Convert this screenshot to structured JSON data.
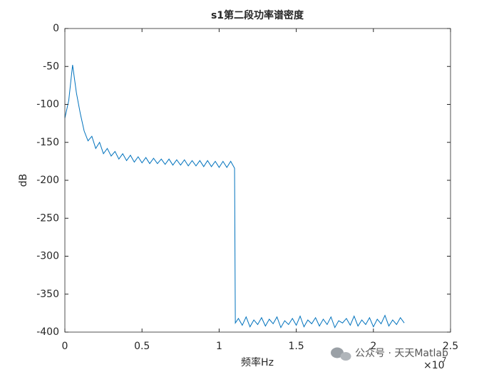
{
  "chart_data": {
    "type": "line",
    "title": "s1第二段功率谱密度",
    "xlabel": "频率Hz",
    "ylabel": "dB",
    "x_multiplier": "×10",
    "x_multiplier_exp": "7",
    "watermark": "公众号 · 天天Matlab",
    "color": "#0072bd",
    "xlim": [
      0,
      25000000
    ],
    "xticks": [
      0,
      {
        "value": 5000000,
        "label": "0.5"
      },
      {
        "value": 10000000,
        "label": "1"
      },
      {
        "value": 15000000,
        "label": "1.5"
      },
      {
        "value": 20000000,
        "label": "2"
      },
      {
        "value": 25000000,
        "label": "2.5"
      }
    ],
    "ylim": [
      -400,
      0
    ],
    "yticks": [
      -400,
      -350,
      -300,
      -250,
      -200,
      -150,
      -100,
      -50,
      0
    ],
    "x": [
      0,
      250000,
      500000,
      750000,
      1000000,
      1250000,
      1500000,
      1750000,
      2000000,
      2250000,
      2500000,
      2750000,
      3000000,
      3250000,
      3500000,
      3750000,
      4000000,
      4250000,
      4500000,
      4750000,
      5000000,
      5250000,
      5500000,
      5750000,
      6000000,
      6250000,
      6500000,
      6750000,
      7000000,
      7250000,
      7500000,
      7750000,
      8000000,
      8250000,
      8500000,
      8750000,
      9000000,
      9250000,
      9500000,
      9750000,
      10000000,
      10250000,
      10500000,
      10750000,
      11000000,
      11050000,
      11250000,
      11500000,
      11750000,
      12000000,
      12250000,
      12500000,
      12750000,
      13000000,
      13250000,
      13500000,
      13750000,
      14000000,
      14250000,
      14500000,
      14750000,
      15000000,
      15250000,
      15500000,
      15750000,
      16000000,
      16250000,
      16500000,
      16750000,
      17000000,
      17250000,
      17500000,
      17750000,
      18000000,
      18250000,
      18500000,
      18750000,
      19000000,
      19250000,
      19500000,
      19750000,
      20000000,
      20250000,
      20500000,
      20750000,
      21000000,
      21250000,
      21500000,
      21750000,
      22000000
    ],
    "values": [
      -118,
      -95,
      -48,
      -85,
      -112,
      -135,
      -148,
      -142,
      -158,
      -150,
      -165,
      -158,
      -168,
      -162,
      -172,
      -165,
      -174,
      -167,
      -176,
      -169,
      -177,
      -170,
      -178,
      -171,
      -178,
      -172,
      -179,
      -172,
      -180,
      -173,
      -180,
      -173,
      -181,
      -174,
      -181,
      -174,
      -182,
      -174,
      -182,
      -175,
      -183,
      -175,
      -183,
      -175,
      -184,
      -388,
      -382,
      -391,
      -380,
      -393,
      -384,
      -390,
      -381,
      -392,
      -383,
      -389,
      -380,
      -394,
      -385,
      -390,
      -382,
      -391,
      -379,
      -393,
      -384,
      -389,
      -381,
      -392,
      -383,
      -390,
      -380,
      -394,
      -385,
      -388,
      -382,
      -391,
      -379,
      -392,
      -384,
      -390,
      -381,
      -393,
      -383,
      -389,
      -378,
      -392,
      -384,
      -390,
      -381,
      -388
    ]
  }
}
